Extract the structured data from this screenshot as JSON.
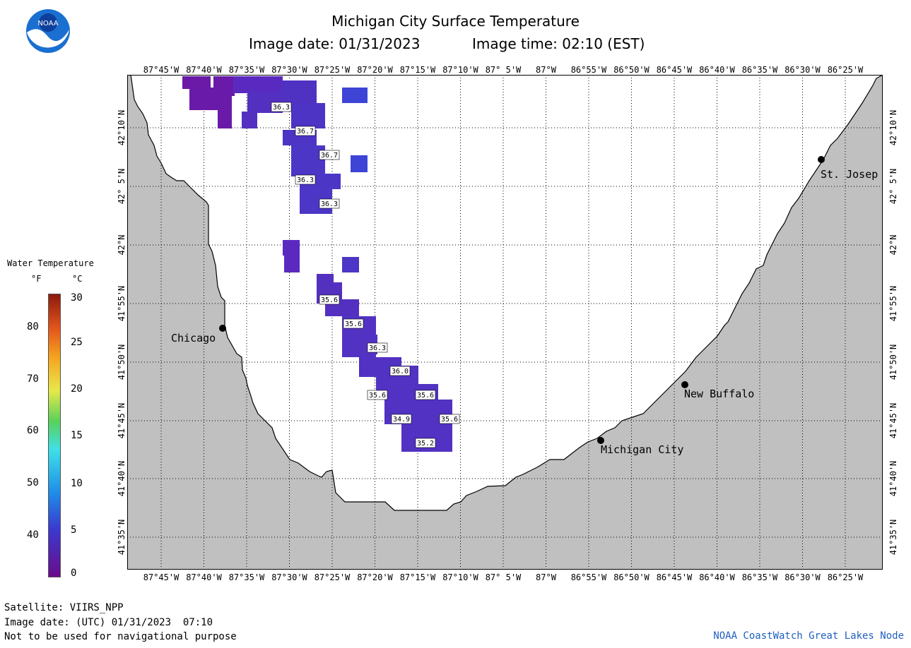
{
  "header": {
    "title": "Michigan City Surface Temperature",
    "image_date": "Image date: 01/31/2023",
    "image_time": "Image time: 02:10 (EST)"
  },
  "logo": {
    "text": "NOAA"
  },
  "map": {
    "lon_labels": [
      "87°45'W",
      "87°40'W",
      "87°35'W",
      "87°30'W",
      "87°25'W",
      "87°20'W",
      "87°15'W",
      "87°10'W",
      "87° 5'W",
      "87°W",
      "86°55'W",
      "86°50'W",
      "86°45'W",
      "86°40'W",
      "86°35'W",
      "86°30'W",
      "86°25'W"
    ],
    "lat_labels": [
      "42°10'N",
      "42° 5'N",
      "42°N",
      "41°55'N",
      "41°50'N",
      "41°45'N",
      "41°40'N",
      "41°35'N"
    ],
    "cities": [
      {
        "name": "St. Josep"
      },
      {
        "name": "Chicago"
      },
      {
        "name": "New Buffalo"
      },
      {
        "name": "Michigan City"
      }
    ],
    "temperature_labels": [
      "36.3",
      "36.7",
      "36.7",
      "36.3",
      "36.3",
      "35.6",
      "35.6",
      "36.3",
      "36.0",
      "35.6",
      "35.6",
      "34.9",
      "35.6",
      "35.2"
    ],
    "land_color": "#c0c0c0",
    "water_color": "#ffffff"
  },
  "legend": {
    "title": "Water Temperature",
    "unit_f": "°F",
    "unit_c": "°C",
    "f_ticks": [
      "80",
      "70",
      "60",
      "50",
      "40"
    ],
    "c_ticks": [
      "30",
      "25",
      "20",
      "15",
      "10",
      "5",
      "0"
    ]
  },
  "footer": {
    "satellite": "Satellite: VIIRS_NPP",
    "utc_date": "Image date: (UTC) 01/31/2023  07:10",
    "disclaimer": "Not to be used for navigational purpose",
    "credit": "NOAA CoastWatch Great Lakes Node"
  }
}
